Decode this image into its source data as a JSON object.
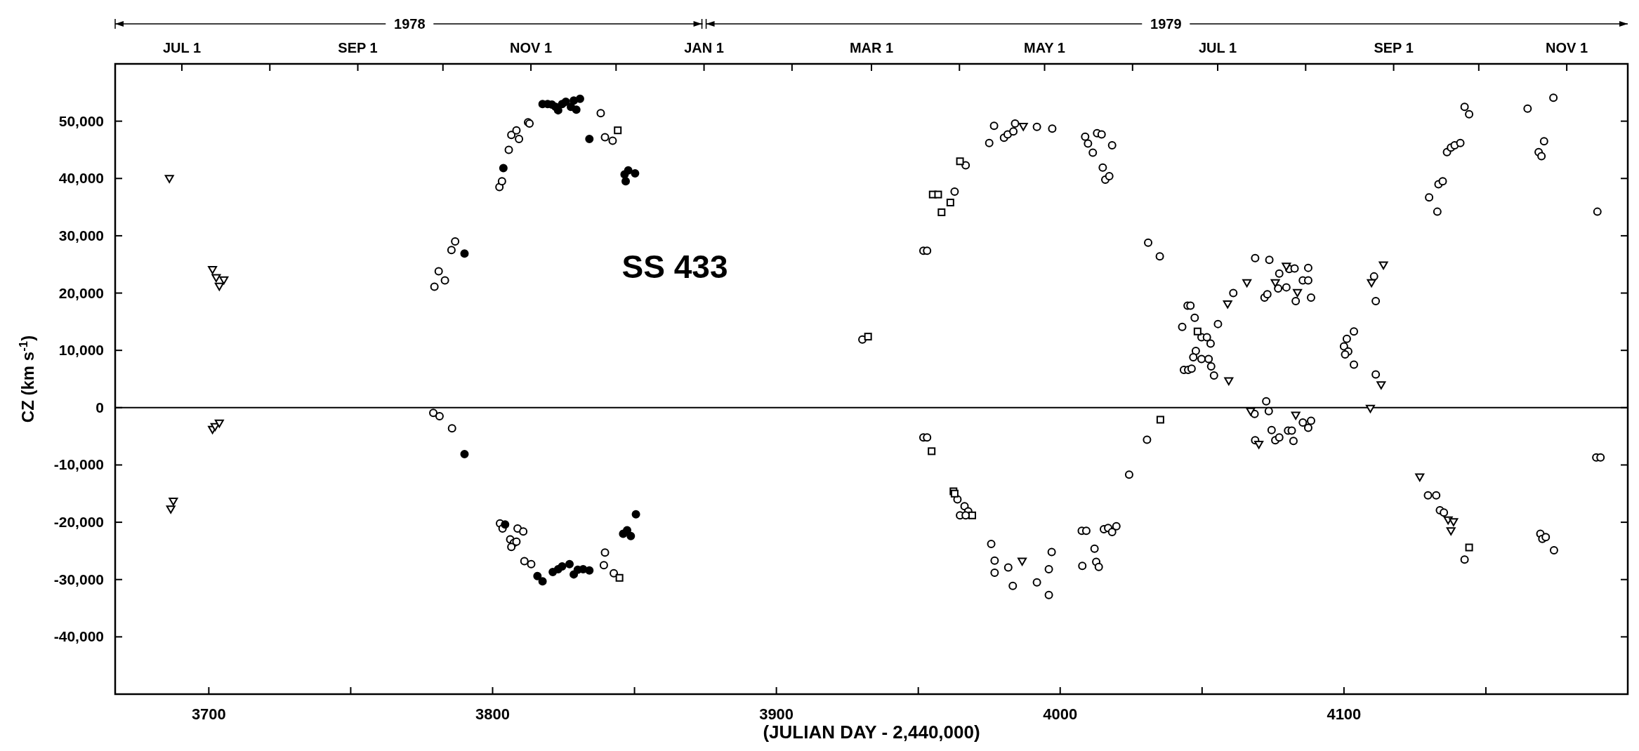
{
  "chart_data": {
    "type": "scatter",
    "xlabel": "(JULIAN DAY - 2,440,000)",
    "ylabel": "CZ (km s$^{-1}$)",
    "annotations": [
      "1978",
      "1979",
      "SS 433"
    ],
    "xlim": [
      3667,
      4200
    ],
    "ylim": [
      -50000,
      60000
    ],
    "xticks": [
      3700,
      {
        "value": 3750,
        "label": null
      },
      3800,
      {
        "value": 3850,
        "label": null
      },
      3900,
      {
        "value": 3950,
        "label": null
      },
      4000,
      {
        "value": 4050,
        "label": null
      },
      4100,
      {
        "value": 4150,
        "label": null
      }
    ],
    "x2lim": [
      "1978-06-07T12:00",
      "1979-11-22T12:00"
    ],
    "x2ticks": [
      {
        "value": "1978-07-01",
        "label": "JUL 1"
      },
      {
        "value": "1978-08-01",
        "label": null
      },
      {
        "value": "1978-09-01",
        "label": "SEP 1"
      },
      {
        "value": "1978-10-01",
        "label": null
      },
      {
        "value": "1978-11-01",
        "label": "NOV 1"
      },
      {
        "value": "1978-12-01",
        "label": null
      },
      {
        "value": "1979-01-01",
        "label": "JAN 1"
      },
      {
        "value": "1979-02-01",
        "label": null
      },
      {
        "value": "1979-03-01",
        "label": "MAR 1"
      },
      {
        "value": "1979-04-01",
        "label": null
      },
      {
        "value": "1979-05-01",
        "label": "MAY 1"
      },
      {
        "value": "1979-06-01",
        "label": null
      },
      {
        "value": "1979-07-01",
        "label": "JUL 1"
      },
      {
        "value": "1979-08-01",
        "label": null
      },
      {
        "value": "1979-09-01",
        "label": "SEP 1"
      },
      {
        "value": "1979-10-01",
        "label": null
      },
      {
        "value": "1979-11-01",
        "label": "NOV 1"
      }
    ],
    "yticks": [
      {
        "value": -40000,
        "label": "-40,000"
      },
      {
        "value": -30000,
        "label": "-30,000"
      },
      {
        "value": -20000,
        "label": "-20,000"
      },
      {
        "value": -10000,
        "label": "-10,000"
      },
      0,
      {
        "value": 10000,
        "label": "10,000"
      },
      {
        "value": 20000,
        "label": "20,000"
      },
      {
        "value": 30000,
        "label": "30,000"
      },
      {
        "value": 40000,
        "label": "40,000"
      },
      {
        "value": 50000,
        "label": "50,000"
      }
    ],
    "grid": false,
    "ref_lines": [
      {
        "axis": "y",
        "value": 0,
        "color": "#000000"
      }
    ],
    "series": [
      {
        "marker": "circle",
        "color": "#ffffff",
        "x": [
          3779.5,
          3781.0,
          3783.2,
          3785.5,
          3786.8,
          3802.4,
          3803.3,
          3805.7,
          3806.6,
          3808.4,
          3809.3,
          3812.5,
          3813.0,
          3838.1,
          3839.6,
          3842.3,
          3779.1,
          3781.3,
          3785.7,
          3802.6,
          3803.5,
          3806.2,
          3807.5,
          3806.6,
          3808.4,
          3808.8,
          3810.8,
          3811.2,
          3813.6,
          3839.6,
          3839.2,
          3842.7,
          3930.3,
          3951.8,
          3953.1,
          3962.8,
          3966.7,
          3975.0,
          3976.7,
          3980.2,
          3981.5,
          3983.5,
          3984.1,
          3991.8,
          3997.2,
          4008.8,
          4009.8,
          4011.5,
          4013.0,
          4014.6,
          4018.3,
          4015.0,
          4015.9,
          4017.3,
          4031.0,
          4035.1,
          4068.7,
          4073.7,
          4072.0,
          4073.0,
          4061.0,
          4055.6,
          4077.2,
          4080.7,
          4082.6,
          4087.4,
          4085.5,
          4087.4,
          4088.4,
          4083.0,
          4079.7,
          4076.8,
          4044.9,
          4045.9,
          4047.4,
          4043.0,
          4049.8,
          4051.7,
          4053.0,
          4047.8,
          4046.9,
          4049.8,
          4052.3,
          4043.6,
          4045.1,
          4046.3,
          4053.2,
          4054.2,
          4103.5,
          4101.0,
          4100.0,
          4101.5,
          4100.4,
          4103.5,
          4111.2,
          4110.6,
          4111.2,
          4130.0,
          4132.9,
          4133.3,
          4134.8,
          4136.3,
          4137.7,
          4139.0,
          4141.0,
          4142.5,
          4144.1,
          4164.7,
          4173.8,
          4170.5,
          4168.6,
          4169.6,
          4189.3,
          3951.8,
          3953.1,
          3963.8,
          3966.3,
          3967.6,
          3964.7,
          3966.7,
          3975.7,
          3976.9,
          3976.9,
          3981.7,
          3983.3,
          3991.8,
          3996.0,
          3997.0,
          3996.0,
          4007.6,
          4009.2,
          4007.8,
          4012.1,
          4012.7,
          4013.6,
          4015.4,
          4016.9,
          4018.3,
          4019.8,
          4024.3,
          4030.6,
          4072.6,
          4073.5,
          4068.7,
          4074.5,
          4075.8,
          4077.2,
          4080.3,
          4081.6,
          4082.2,
          4085.5,
          4087.4,
          4088.4,
          4129.6,
          4132.5,
          4133.8,
          4135.2,
          4142.5,
          4169.2,
          4169.9,
          4171.1,
          4174.0,
          4188.9,
          4190.4,
          4068.5
        ],
        "values": [
          21100,
          23800,
          22200,
          27500,
          29000,
          38500,
          39500,
          45000,
          47600,
          48400,
          46900,
          49800,
          49600,
          51400,
          47200,
          46600,
          -900,
          -1500,
          -3600,
          -20200,
          -21100,
          -23000,
          -23600,
          -24300,
          -23400,
          -21100,
          -21600,
          -26800,
          -27300,
          -25300,
          -27500,
          -28900,
          11900,
          27400,
          27400,
          37700,
          42300,
          46200,
          49200,
          47100,
          47700,
          48200,
          49600,
          49000,
          48700,
          47300,
          46100,
          44500,
          47900,
          47700,
          45800,
          41900,
          39800,
          40400,
          28800,
          26400,
          26100,
          25800,
          19200,
          19800,
          20000,
          14600,
          23400,
          24200,
          24300,
          24400,
          22200,
          22200,
          19200,
          18600,
          21000,
          20800,
          17800,
          17800,
          15700,
          14100,
          12300,
          12300,
          11200,
          9900,
          8800,
          8500,
          8500,
          6600,
          6600,
          6800,
          7200,
          5600,
          13300,
          12000,
          10700,
          9800,
          9300,
          7500,
          18600,
          22900,
          5800,
          36700,
          34200,
          39000,
          39500,
          44600,
          45400,
          45800,
          46200,
          52500,
          51200,
          52200,
          54100,
          46500,
          44600,
          43900,
          34200,
          -5200,
          -5200,
          -16000,
          -17200,
          -18100,
          -18800,
          -18800,
          -23800,
          -26700,
          -28800,
          -27900,
          -31100,
          -30500,
          -28200,
          -25200,
          -32700,
          -21500,
          -21500,
          -27600,
          -24600,
          -26900,
          -27800,
          -21200,
          -21000,
          -21700,
          -20700,
          -11700,
          -5600,
          1100,
          -600,
          -5700,
          -3900,
          -5700,
          -5200,
          -4000,
          -4000,
          -5800,
          -2600,
          -3500,
          -2300,
          -15300,
          -15300,
          -17900,
          -18300,
          -26500,
          -22000,
          -22900,
          -22600,
          -24900,
          -8700,
          -8700,
          -1100
        ]
      },
      {
        "marker": "triangle",
        "color": "#ffffff",
        "x": [
          3686.1,
          3701.3,
          3702.6,
          3703.7,
          3705.3,
          3687.5,
          3686.6,
          3701.3,
          3702.2,
          3703.7,
          3987.0,
          4065.8,
          4059.0,
          4079.7,
          4083.6,
          4075.8,
          4059.4,
          4109.7,
          4113.9,
          4113.1,
          4109.3,
          3986.6,
          4067.1,
          4070.0,
          4083.0,
          4126.7,
          4136.7,
          4138.6,
          4137.7
        ],
        "values": [
          40000,
          24100,
          22700,
          21200,
          22300,
          -16300,
          -17700,
          -3800,
          -3300,
          -2700,
          49100,
          21800,
          18100,
          24700,
          20100,
          21800,
          4700,
          21800,
          24900,
          4000,
          -100,
          -26800,
          -600,
          -6400,
          -1300,
          -12100,
          -19600,
          -19900,
          -21500
        ]
      },
      {
        "marker": "square",
        "color": "#ffffff",
        "x": [
          3844.1,
          3844.7,
          3932.3,
          3955.1,
          3957.0,
          3958.2,
          3961.3,
          3964.7,
          3954.7,
          3962.4,
          3962.8,
          3969.0,
          4035.3,
          4048.4,
          4144.1
        ],
        "values": [
          48400,
          -29700,
          12400,
          37200,
          37200,
          34100,
          35800,
          43000,
          -7600,
          -14600,
          -15000,
          -18800,
          -2100,
          13300,
          -24400
        ]
      },
      {
        "marker": "circle",
        "color": "#000000",
        "x": [
          3790.1,
          3803.8,
          3817.6,
          3819.4,
          3820.9,
          3822.2,
          3823.1,
          3824.5,
          3825.8,
          3827.6,
          3828.6,
          3829.5,
          3830.8,
          3834.1,
          3846.5,
          3847.8,
          3846.9,
          3850.2,
          3790.1,
          3804.4,
          3815.8,
          3817.6,
          3821.2,
          3823.1,
          3824.5,
          3827.1,
          3828.6,
          3830.0,
          3831.9,
          3834.1,
          3846.0,
          3847.4,
          3848.7,
          3850.5
        ],
        "values": [
          26900,
          41800,
          53000,
          53000,
          52900,
          52500,
          51900,
          53000,
          53400,
          52500,
          53600,
          52000,
          53900,
          46900,
          40700,
          41400,
          39500,
          40900,
          -8100,
          -20400,
          -29400,
          -30300,
          -28700,
          -28200,
          -27700,
          -27300,
          -29100,
          -28300,
          -28200,
          -28400,
          -22000,
          -21400,
          -22400,
          -18600
        ]
      }
    ]
  }
}
